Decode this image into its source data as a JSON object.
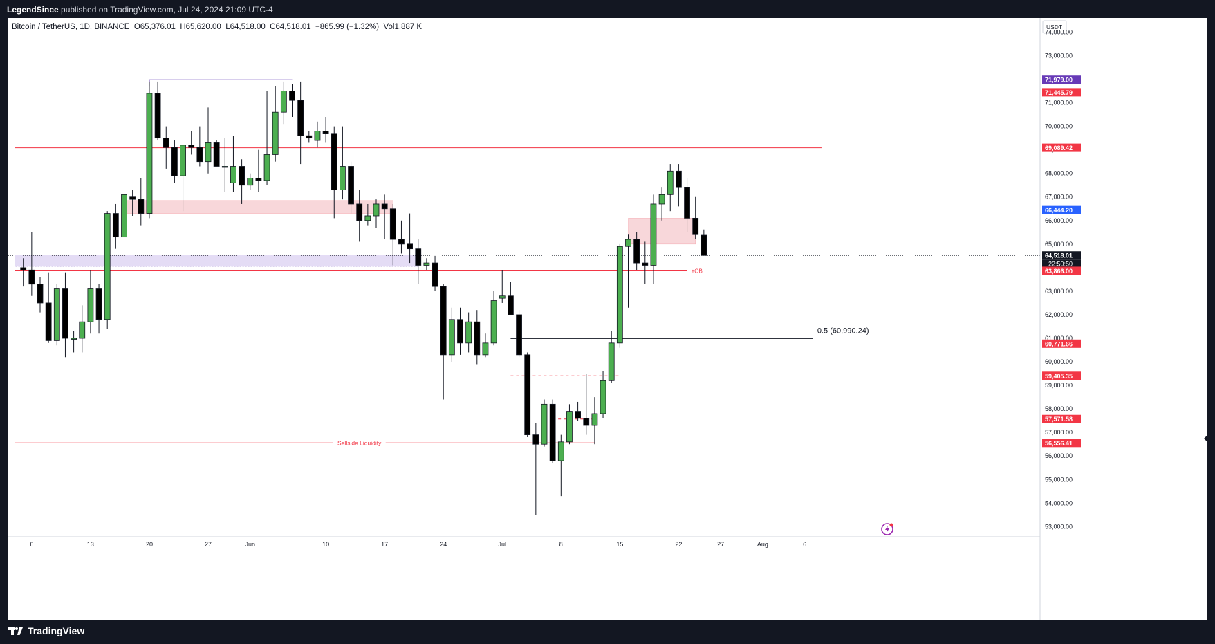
{
  "publisher": {
    "name": "LegendSince",
    "text": " published on TradingView.com, Jul 24, 2024 21:09 UTC-4"
  },
  "brand": "TradingView",
  "legend": {
    "symbol": "Bitcoin / TetherUS, 1D, BINANCE",
    "open": "O65,376.01",
    "high": "H65,620.00",
    "low": "L64,518.00",
    "close": "C64,518.01",
    "change": "−865.99 (−1.32%)",
    "volume": "Vol1.887 K"
  },
  "colors": {
    "up": "#4caf50",
    "down": "#000000",
    "red_line": "#f23645",
    "purple": "#673ab7",
    "blue": "#2962ff",
    "zone_red": "#f8d7da",
    "zone_purple": "#e4dcf5"
  },
  "chart_data": {
    "type": "candlestick",
    "currency": "USDT",
    "ylim": [
      52600,
      74600
    ],
    "yticks": [
      53000,
      54000,
      55000,
      56000,
      57000,
      58000,
      59000,
      60000,
      61000,
      62000,
      63000,
      64000,
      65000,
      66000,
      67000,
      68000,
      69000,
      70000,
      71000,
      72000,
      73000,
      74000
    ],
    "ytick_labels": [
      "53,000.00",
      "54,000.00",
      "55,000.00",
      "56,000.00",
      "57,000.00",
      "58,000.00",
      "59,000.00",
      "60,000.00",
      "61,000.00",
      "62,000.00",
      "63,000.00",
      "64,000.00",
      "65,000.00",
      "66,000.00",
      "67,000.00",
      "68,000.00",
      "69,000.00",
      "70,000.00",
      "71,000.00",
      "72,000.00",
      "73,000.00",
      "74,000.00"
    ],
    "first_date": "2024-05-05",
    "xticks": [
      {
        "day": 1,
        "label": "6"
      },
      {
        "day": 8,
        "label": "13"
      },
      {
        "day": 15,
        "label": "20"
      },
      {
        "day": 22,
        "label": "27"
      },
      {
        "day": 27,
        "label": "Jun"
      },
      {
        "day": 36,
        "label": "10"
      },
      {
        "day": 43,
        "label": "17"
      },
      {
        "day": 50,
        "label": "24"
      },
      {
        "day": 57,
        "label": "Jul"
      },
      {
        "day": 64,
        "label": "8"
      },
      {
        "day": 71,
        "label": "15"
      },
      {
        "day": 78,
        "label": "22"
      },
      {
        "day": 83,
        "label": "27"
      },
      {
        "day": 88,
        "label": "Aug"
      },
      {
        "day": 93,
        "label": "6"
      }
    ],
    "candles": [
      [
        64000,
        64400,
        63200,
        63900
      ],
      [
        63900,
        65500,
        62800,
        63300
      ],
      [
        63300,
        63600,
        62100,
        62500
      ],
      [
        62500,
        63800,
        60800,
        60900
      ],
      [
        60900,
        63300,
        60700,
        63100
      ],
      [
        63100,
        63800,
        60200,
        61000
      ],
      [
        61000,
        61300,
        60400,
        61000
      ],
      [
        61000,
        62400,
        60400,
        61700
      ],
      [
        61700,
        63900,
        61200,
        63100
      ],
      [
        63100,
        63300,
        61200,
        61800
      ],
      [
        61800,
        66400,
        61400,
        66300
      ],
      [
        66300,
        66700,
        64800,
        65300
      ],
      [
        65300,
        67400,
        65000,
        67100
      ],
      [
        67000,
        67300,
        66200,
        66900
      ],
      [
        66900,
        67800,
        65800,
        66300
      ],
      [
        66300,
        71900,
        66100,
        71400
      ],
      [
        71400,
        71900,
        69400,
        69500
      ],
      [
        69500,
        70000,
        68200,
        69100
      ],
      [
        69100,
        69400,
        67600,
        67900
      ],
      [
        67900,
        69200,
        66400,
        69200
      ],
      [
        69200,
        69800,
        68800,
        69100
      ],
      [
        69100,
        70000,
        68300,
        68500
      ],
      [
        68500,
        70800,
        68000,
        69300
      ],
      [
        69300,
        69400,
        68300,
        68300
      ],
      [
        68300,
        69500,
        67200,
        68300
      ],
      [
        67600,
        69600,
        67200,
        68300
      ],
      [
        68300,
        68600,
        66700,
        67500
      ],
      [
        67500,
        68000,
        67300,
        67800
      ],
      [
        67800,
        69000,
        67200,
        67700
      ],
      [
        67700,
        71500,
        67500,
        68800
      ],
      [
        68800,
        71700,
        68500,
        70600
      ],
      [
        70600,
        71900,
        70100,
        71500
      ],
      [
        71500,
        71800,
        70400,
        71100
      ],
      [
        71100,
        71900,
        68400,
        69600
      ],
      [
        69600,
        69800,
        69300,
        69500
      ],
      [
        69400,
        70200,
        69100,
        69800
      ],
      [
        69800,
        70400,
        69300,
        69700
      ],
      [
        69700,
        70000,
        66100,
        67300
      ],
      [
        67300,
        70000,
        66900,
        68300
      ],
      [
        68300,
        68500,
        66300,
        66700
      ],
      [
        66700,
        67300,
        65100,
        66000
      ],
      [
        66000,
        66700,
        65800,
        66200
      ],
      [
        66200,
        66900,
        65700,
        66700
      ],
      [
        66700,
        67100,
        65200,
        66500
      ],
      [
        66500,
        66700,
        64100,
        65200
      ],
      [
        65200,
        66000,
        64600,
        65000
      ],
      [
        65000,
        66300,
        64200,
        64800
      ],
      [
        64800,
        65200,
        63300,
        64100
      ],
      [
        64100,
        64400,
        63900,
        64200
      ],
      [
        64200,
        64500,
        63000,
        63200
      ],
      [
        63200,
        63300,
        58400,
        60300
      ],
      [
        60300,
        62300,
        60000,
        61800
      ],
      [
        61800,
        62300,
        60300,
        60800
      ],
      [
        60800,
        62100,
        60400,
        61700
      ],
      [
        61700,
        62200,
        59900,
        60300
      ],
      [
        60300,
        61200,
        60200,
        60800
      ],
      [
        60800,
        63000,
        60700,
        62600
      ],
      [
        62700,
        63900,
        62500,
        62800
      ],
      [
        62800,
        63400,
        62100,
        62000
      ],
      [
        62000,
        62200,
        60200,
        60300
      ],
      [
        60300,
        60400,
        56800,
        56900
      ],
      [
        56900,
        57400,
        53500,
        56500
      ],
      [
        56500,
        58400,
        56400,
        58200
      ],
      [
        58200,
        58400,
        55700,
        55800
      ],
      [
        55800,
        56900,
        54300,
        56600
      ],
      [
        56600,
        58200,
        56500,
        57900
      ],
      [
        57900,
        58300,
        57500,
        57600
      ],
      [
        57600,
        59500,
        56900,
        57300
      ],
      [
        57300,
        58500,
        56500,
        57800
      ],
      [
        57800,
        59600,
        57600,
        59200
      ],
      [
        59200,
        61300,
        59100,
        60800
      ],
      [
        60800,
        65000,
        60600,
        64900
      ],
      [
        64900,
        65400,
        62300,
        65200
      ],
      [
        65200,
        65500,
        63900,
        64200
      ],
      [
        64200,
        65100,
        63300,
        64100
      ],
      [
        64100,
        67100,
        63300,
        66700
      ],
      [
        66700,
        67400,
        66000,
        67100
      ],
      [
        67100,
        68400,
        66400,
        68100
      ],
      [
        68100,
        68400,
        66600,
        67400
      ],
      [
        67400,
        67800,
        65500,
        66100
      ],
      [
        66100,
        67000,
        65200,
        65400
      ],
      [
        65376.01,
        65620,
        64518,
        64518.01
      ]
    ],
    "levels": [
      {
        "name": "high-level",
        "value": 71979,
        "label": "71,979.00",
        "color": "#673ab7",
        "x0": 15,
        "x1": 32
      },
      {
        "name": "red-level-1",
        "value": 71445.79,
        "label": "71,445.79",
        "color": "#f23645"
      },
      {
        "name": "red-level-2",
        "value": 69089.42,
        "label": "69,089.42",
        "color": "#f23645",
        "x0": -1,
        "x1": 95
      },
      {
        "name": "blue-level",
        "value": 66444.2,
        "label": "66,444.20",
        "color": "#2962ff"
      },
      {
        "name": "price-level",
        "value": 64518.01,
        "label": "64,518.01",
        "countdown": "22:50:50",
        "color": "#131722"
      },
      {
        "name": "ob-level",
        "value": 63866,
        "label": "63,866.00",
        "color": "#f23645",
        "x0": -1,
        "x1": 79
      },
      {
        "name": "fib-level",
        "value": 60771.66,
        "label": "60,771.66",
        "color": "#f23645"
      },
      {
        "name": "dashed-level-1",
        "value": 59405.35,
        "label": "59,405.35",
        "color": "#f23645",
        "x0": 58,
        "x1": 71
      },
      {
        "name": "dashed-level-2",
        "value": 57571.58,
        "label": "57,571.58",
        "color": "#f23645",
        "x0": 63,
        "x1": 68
      },
      {
        "name": "sellside-level",
        "value": 56556.41,
        "label": "56,556.41",
        "color": "#f23645",
        "x0": -1,
        "x1": 68
      }
    ],
    "zones": [
      {
        "name": "supply-zone-1",
        "x0": 12,
        "x1": 44,
        "y0": 66300,
        "y1": 66850,
        "color": "#f8d7da"
      },
      {
        "name": "supply-zone-2",
        "x0": 72,
        "x1": 80,
        "y0": 65000,
        "y1": 66100,
        "color": "#f8d7da"
      },
      {
        "name": "purple-zone",
        "x0": -1,
        "x1": 47,
        "y0": 64050,
        "y1": 64540,
        "color": "#e4dcf5"
      }
    ],
    "annotations": [
      {
        "name": "ob-label",
        "text": "+OB"
      },
      {
        "name": "fib-label",
        "text": "0.5 (60,990.24)",
        "value": 60990.24
      },
      {
        "name": "sellside-label",
        "text": "Sellside Liquidity"
      }
    ]
  }
}
